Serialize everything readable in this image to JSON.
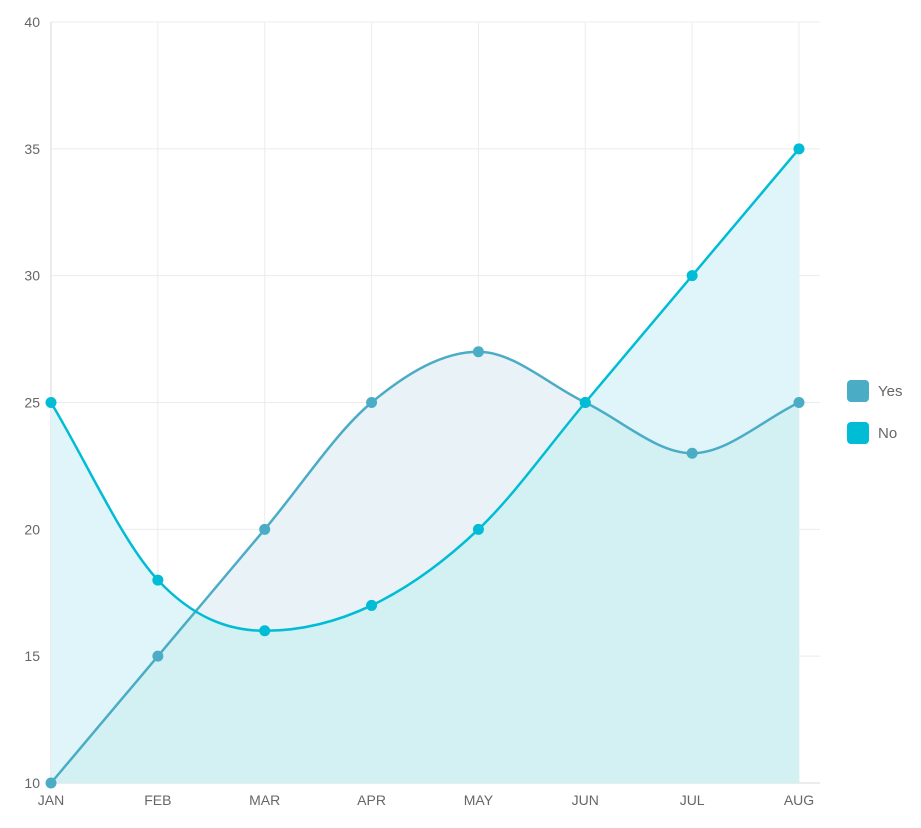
{
  "chart_data": {
    "type": "area",
    "categories": [
      "JAN",
      "FEB",
      "MAR",
      "APR",
      "MAY",
      "JUN",
      "JUL",
      "AUG"
    ],
    "series": [
      {
        "name": "Yes",
        "values": [
          10,
          15,
          20,
          25,
          27,
          25,
          23,
          25
        ],
        "color": "#4bacc6",
        "fill": "#e9f3f7"
      },
      {
        "name": "No",
        "values": [
          25,
          18,
          16,
          17,
          20,
          25,
          30,
          35
        ],
        "color": "#00bcd4",
        "fill": "#e0f5f9"
      }
    ],
    "ylim": [
      10,
      40
    ],
    "yticks": [
      10,
      15,
      20,
      25,
      30,
      35,
      40
    ],
    "grid": true,
    "legend_position": "right",
    "overlap_fill": "#d3f0f3"
  }
}
